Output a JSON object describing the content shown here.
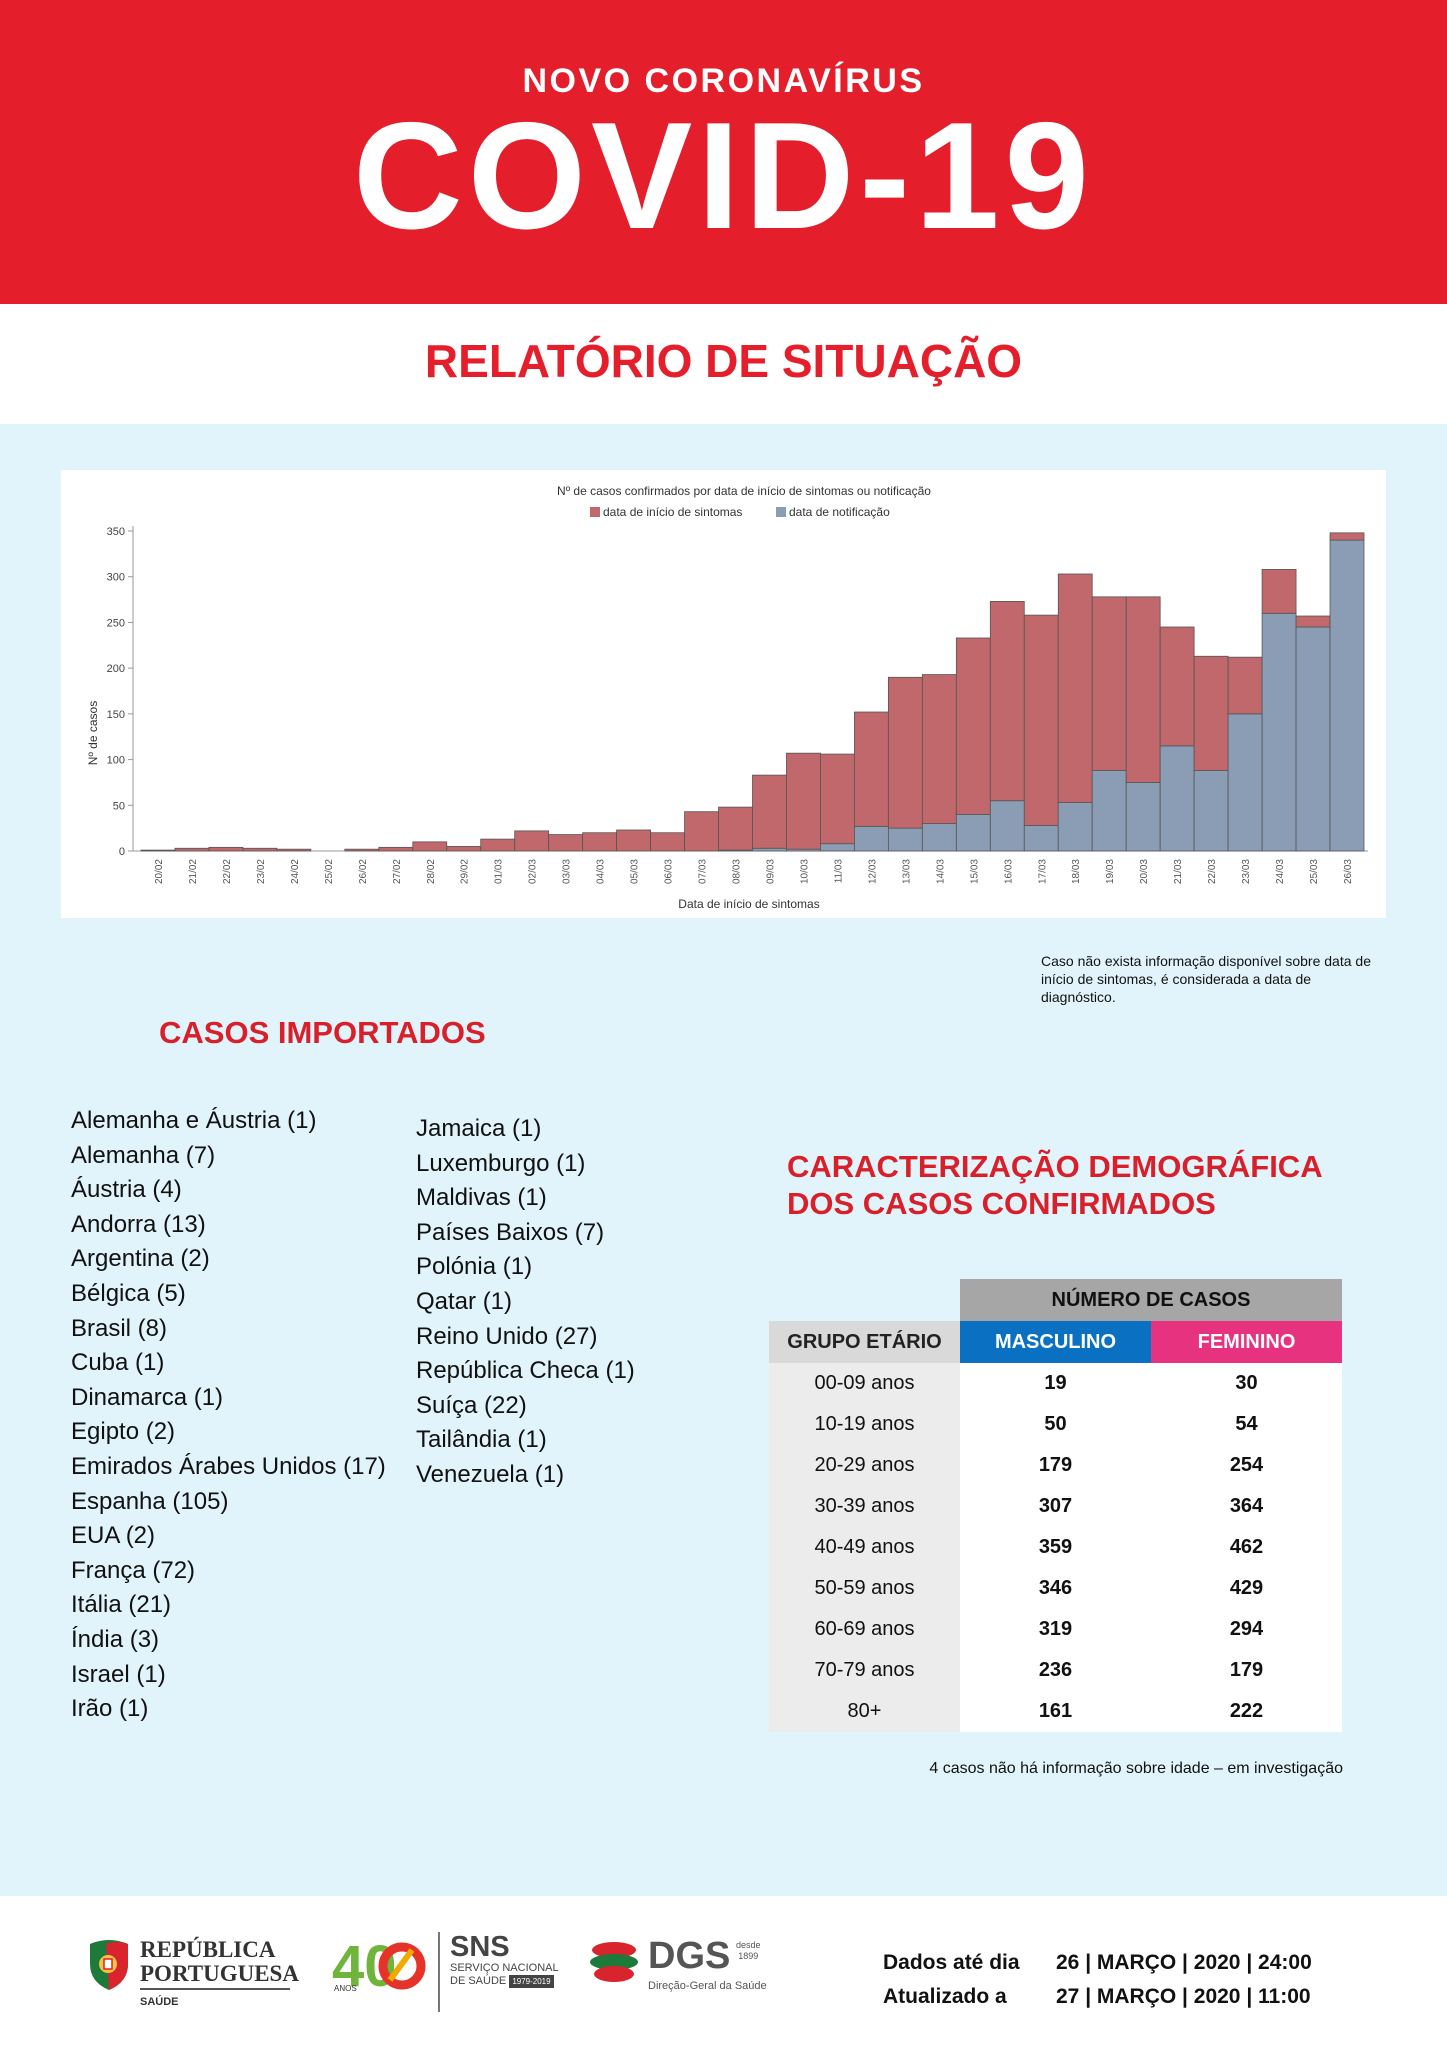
{
  "header": {
    "kicker": "NOVO CORONAVÍRUS",
    "title": "COVID-19",
    "report_title": "RELATÓRIO DE SITUAÇÃO"
  },
  "colors": {
    "brand_red": "#e41e2b",
    "light_background": "#e1f4fb",
    "onset_series": "#c0686b",
    "notification_series": "#8a9db5",
    "male": "#0a71c2",
    "female": "#e6327f"
  },
  "chart_data": {
    "type": "bar",
    "stacked": true,
    "title": "Nº de casos confirmados por data de início de sintomas ou notificação",
    "xlabel": "Data de início de sintomas",
    "ylabel": "Nº de casos",
    "ylim": [
      0,
      350
    ],
    "yticks": [
      0,
      50,
      100,
      150,
      200,
      250,
      300,
      350
    ],
    "legend_position": "top-center",
    "categories": [
      "20/02",
      "21/02",
      "22/02",
      "23/02",
      "24/02",
      "25/02",
      "26/02",
      "27/02",
      "28/02",
      "29/02",
      "01/03",
      "02/03",
      "03/03",
      "04/03",
      "05/03",
      "06/03",
      "07/03",
      "08/03",
      "09/03",
      "10/03",
      "11/03",
      "12/03",
      "13/03",
      "14/03",
      "15/03",
      "16/03",
      "17/03",
      "18/03",
      "19/03",
      "20/03",
      "21/03",
      "22/03",
      "23/03",
      "24/03",
      "25/03",
      "26/03"
    ],
    "series": [
      {
        "name": "data de notificação",
        "values": [
          0,
          0,
          0,
          0,
          0,
          0,
          0,
          0,
          0,
          0,
          0,
          0,
          0,
          0,
          0,
          0,
          0,
          1,
          3,
          2,
          8,
          27,
          25,
          30,
          40,
          55,
          28,
          53,
          88,
          75,
          115,
          88,
          150,
          260,
          245,
          340
        ]
      },
      {
        "name": "data de início de sintomas",
        "values": [
          1,
          3,
          4,
          3,
          2,
          0,
          2,
          4,
          10,
          5,
          13,
          22,
          18,
          20,
          23,
          20,
          43,
          47,
          80,
          105,
          98,
          125,
          165,
          163,
          193,
          218,
          230,
          250,
          190,
          203,
          130,
          125,
          62,
          48,
          12,
          8
        ]
      }
    ]
  },
  "chart_note": "Caso não exista informação disponível sobre data de início de sintomas, é considerada a data de diagnóstico.",
  "imported": {
    "title": "CASOS IMPORTADOS",
    "col1": [
      "Alemanha e Áustria (1)",
      "Alemanha (7)",
      "Áustria (4)",
      "Andorra (13)",
      "Argentina (2)",
      "Bélgica (5)",
      "Brasil (8)",
      "Cuba (1)",
      "Dinamarca (1)",
      "Egipto (2)",
      "Emirados Árabes Unidos (17)",
      "Espanha (105)",
      "EUA (2)",
      "França (72)",
      "Itália (21)",
      "Índia (3)",
      "Israel (1)",
      "Irão (1)"
    ],
    "col2": [
      "Jamaica (1)",
      "Luxemburgo (1)",
      "Maldivas (1)",
      "Países Baixos (7)",
      "Polónia (1)",
      "Qatar (1)",
      "Reino Unido (27)",
      "República Checa (1)",
      "Suíça (22)",
      "Tailândia (1)",
      "Venezuela (1)"
    ]
  },
  "demographics": {
    "title": "CARACTERIZAÇÃO DEMOGRÁFICA DOS CASOS CONFIRMADOS",
    "group_header": "NÚMERO DE CASOS",
    "col_age": "GRUPO ETÁRIO",
    "col_male": "MASCULINO",
    "col_female": "FEMININO",
    "rows": [
      {
        "age": "00-09 anos",
        "male": "19",
        "female": "30"
      },
      {
        "age": "10-19 anos",
        "male": "50",
        "female": "54"
      },
      {
        "age": "20-29 anos",
        "male": "179",
        "female": "254"
      },
      {
        "age": "30-39 anos",
        "male": "307",
        "female": "364"
      },
      {
        "age": "40-49 anos",
        "male": "359",
        "female": "462"
      },
      {
        "age": "50-59 anos",
        "male": "346",
        "female": "429"
      },
      {
        "age": "60-69 anos",
        "male": "319",
        "female": "294"
      },
      {
        "age": "70-79 anos",
        "male": "236",
        "female": "179"
      },
      {
        "age": "80+",
        "male": "161",
        "female": "222"
      }
    ],
    "note": "4 casos não há informação sobre idade – em investigação"
  },
  "footer": {
    "rp_line1": "REPÚBLICA",
    "rp_line2": "PORTUGUESA",
    "rp_sub": "SAÚDE",
    "forty": "40",
    "anos": "ANOS",
    "sns_title": "SNS",
    "sns_line1": "SERVIÇO NACIONAL",
    "sns_line2": "DE SAÚDE",
    "sns_years": "1979-2019",
    "dgs_title": "DGS",
    "dgs_desde": "desde",
    "dgs_year": "1899",
    "dgs_sub": "Direção-Geral da Saúde",
    "data_label": "Dados até dia",
    "data_value": "26 | MARÇO | 2020 | 24:00",
    "updated_label": "Atualizado a",
    "updated_value": "27 | MARÇO | 2020 | 11:00"
  }
}
